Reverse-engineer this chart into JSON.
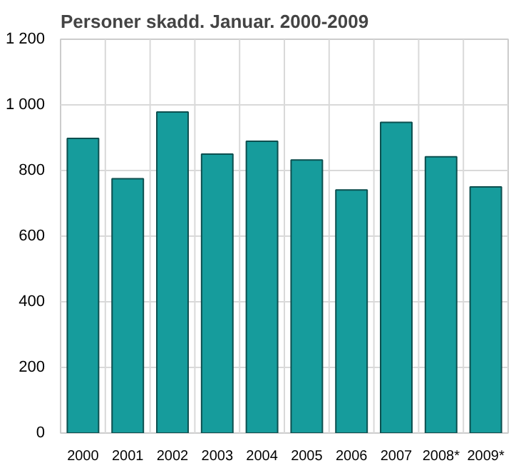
{
  "chart_data": {
    "type": "bar",
    "title": "Personer skadd. Januar. 2000-2009",
    "categories": [
      "2000",
      "2001",
      "2002",
      "2003",
      "2004",
      "2005",
      "2006",
      "2007",
      "2008*",
      "2009*"
    ],
    "values": [
      898,
      775,
      978,
      850,
      889,
      832,
      741,
      947,
      842,
      750
    ],
    "color": "#169c9c",
    "ylim": [
      0,
      1200
    ],
    "yticks": [
      0,
      200,
      400,
      600,
      800,
      {
        "value": 1000,
        "label": "1 000"
      },
      {
        "value": 1200,
        "label": "1 200"
      }
    ],
    "grid": true
  }
}
